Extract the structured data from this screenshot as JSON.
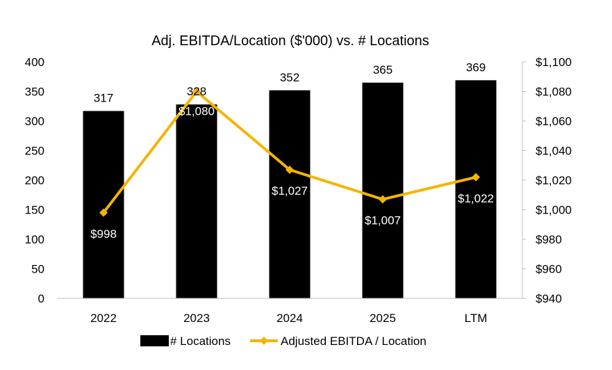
{
  "colors": {
    "bar": "#000000",
    "line": "#F5B400",
    "axis": "#bfbfbf",
    "text": "#000000",
    "line_label_text": "#ffffff"
  },
  "chart_data": {
    "type": "bar",
    "title": "Adj. EBITDA/Location ($'000) vs. # Locations",
    "categories": [
      "2022",
      "2023",
      "2024",
      "2025",
      "LTM"
    ],
    "series": [
      {
        "name": "# Locations",
        "type": "bar",
        "axis": "left",
        "values": [
          317,
          328,
          352,
          365,
          369
        ],
        "labels": [
          "317",
          "328",
          "352",
          "365",
          "369"
        ]
      },
      {
        "name": "Adjusted EBITDA / Location",
        "type": "line",
        "axis": "right",
        "marker": "diamond",
        "values": [
          998,
          1080,
          1027,
          1007,
          1022
        ],
        "labels": [
          "$998",
          "$1,080",
          "$1,027",
          "$1,007",
          "$1,022"
        ]
      }
    ],
    "y_left": {
      "min": 0,
      "max": 400,
      "ticks": [
        0,
        50,
        100,
        150,
        200,
        250,
        300,
        350,
        400
      ],
      "tick_labels": [
        "0",
        "50",
        "100",
        "150",
        "200",
        "250",
        "300",
        "350",
        "400"
      ]
    },
    "y_right": {
      "min": 940,
      "max": 1100,
      "ticks": [
        940,
        960,
        980,
        1000,
        1020,
        1040,
        1060,
        1080,
        1100
      ],
      "tick_labels": [
        "$940",
        "$960",
        "$980",
        "$1,000",
        "$1,020",
        "$1,040",
        "$1,060",
        "$1,080",
        "$1,100"
      ]
    },
    "grid": false,
    "legend_position": "bottom"
  }
}
